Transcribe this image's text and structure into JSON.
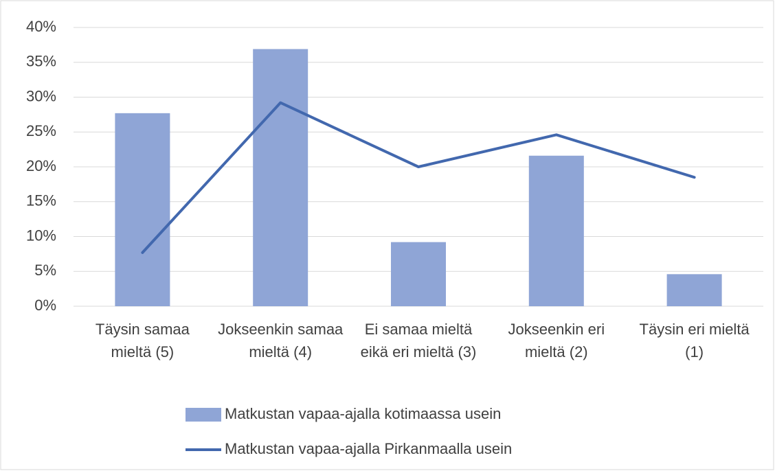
{
  "chart_data": {
    "type": "bar-line",
    "categories": [
      "Täysin samaa mieltä (5)",
      "Jokseenkin samaa mieltä (4)",
      "Ei samaa mieltä eikä eri mieltä (3)",
      "Jokseenkin eri mieltä (2)",
      "Täysin eri mieltä (1)"
    ],
    "series": [
      {
        "name": "Matkustan vapaa-ajalla kotimaassa usein",
        "type": "bar",
        "color": "#8fa5d6",
        "values": [
          27.7,
          36.9,
          9.2,
          21.6,
          4.6
        ]
      },
      {
        "name": "Matkustan vapaa-ajalla Pirkanmaalla usein",
        "type": "line",
        "color": "#4268ae",
        "values": [
          7.7,
          29.2,
          20.0,
          24.6,
          18.5
        ]
      }
    ],
    "ylim": [
      0,
      40
    ],
    "yticks": [
      {
        "value": 0,
        "label": "0%"
      },
      {
        "value": 5,
        "label": "5%"
      },
      {
        "value": 10,
        "label": "10%"
      },
      {
        "value": 15,
        "label": "15%"
      },
      {
        "value": 20,
        "label": "20%"
      },
      {
        "value": 25,
        "label": "25%"
      },
      {
        "value": 30,
        "label": "30%"
      },
      {
        "value": 35,
        "label": "35%"
      },
      {
        "value": 40,
        "label": "40%"
      }
    ],
    "grid": true,
    "legend": "bottom"
  }
}
